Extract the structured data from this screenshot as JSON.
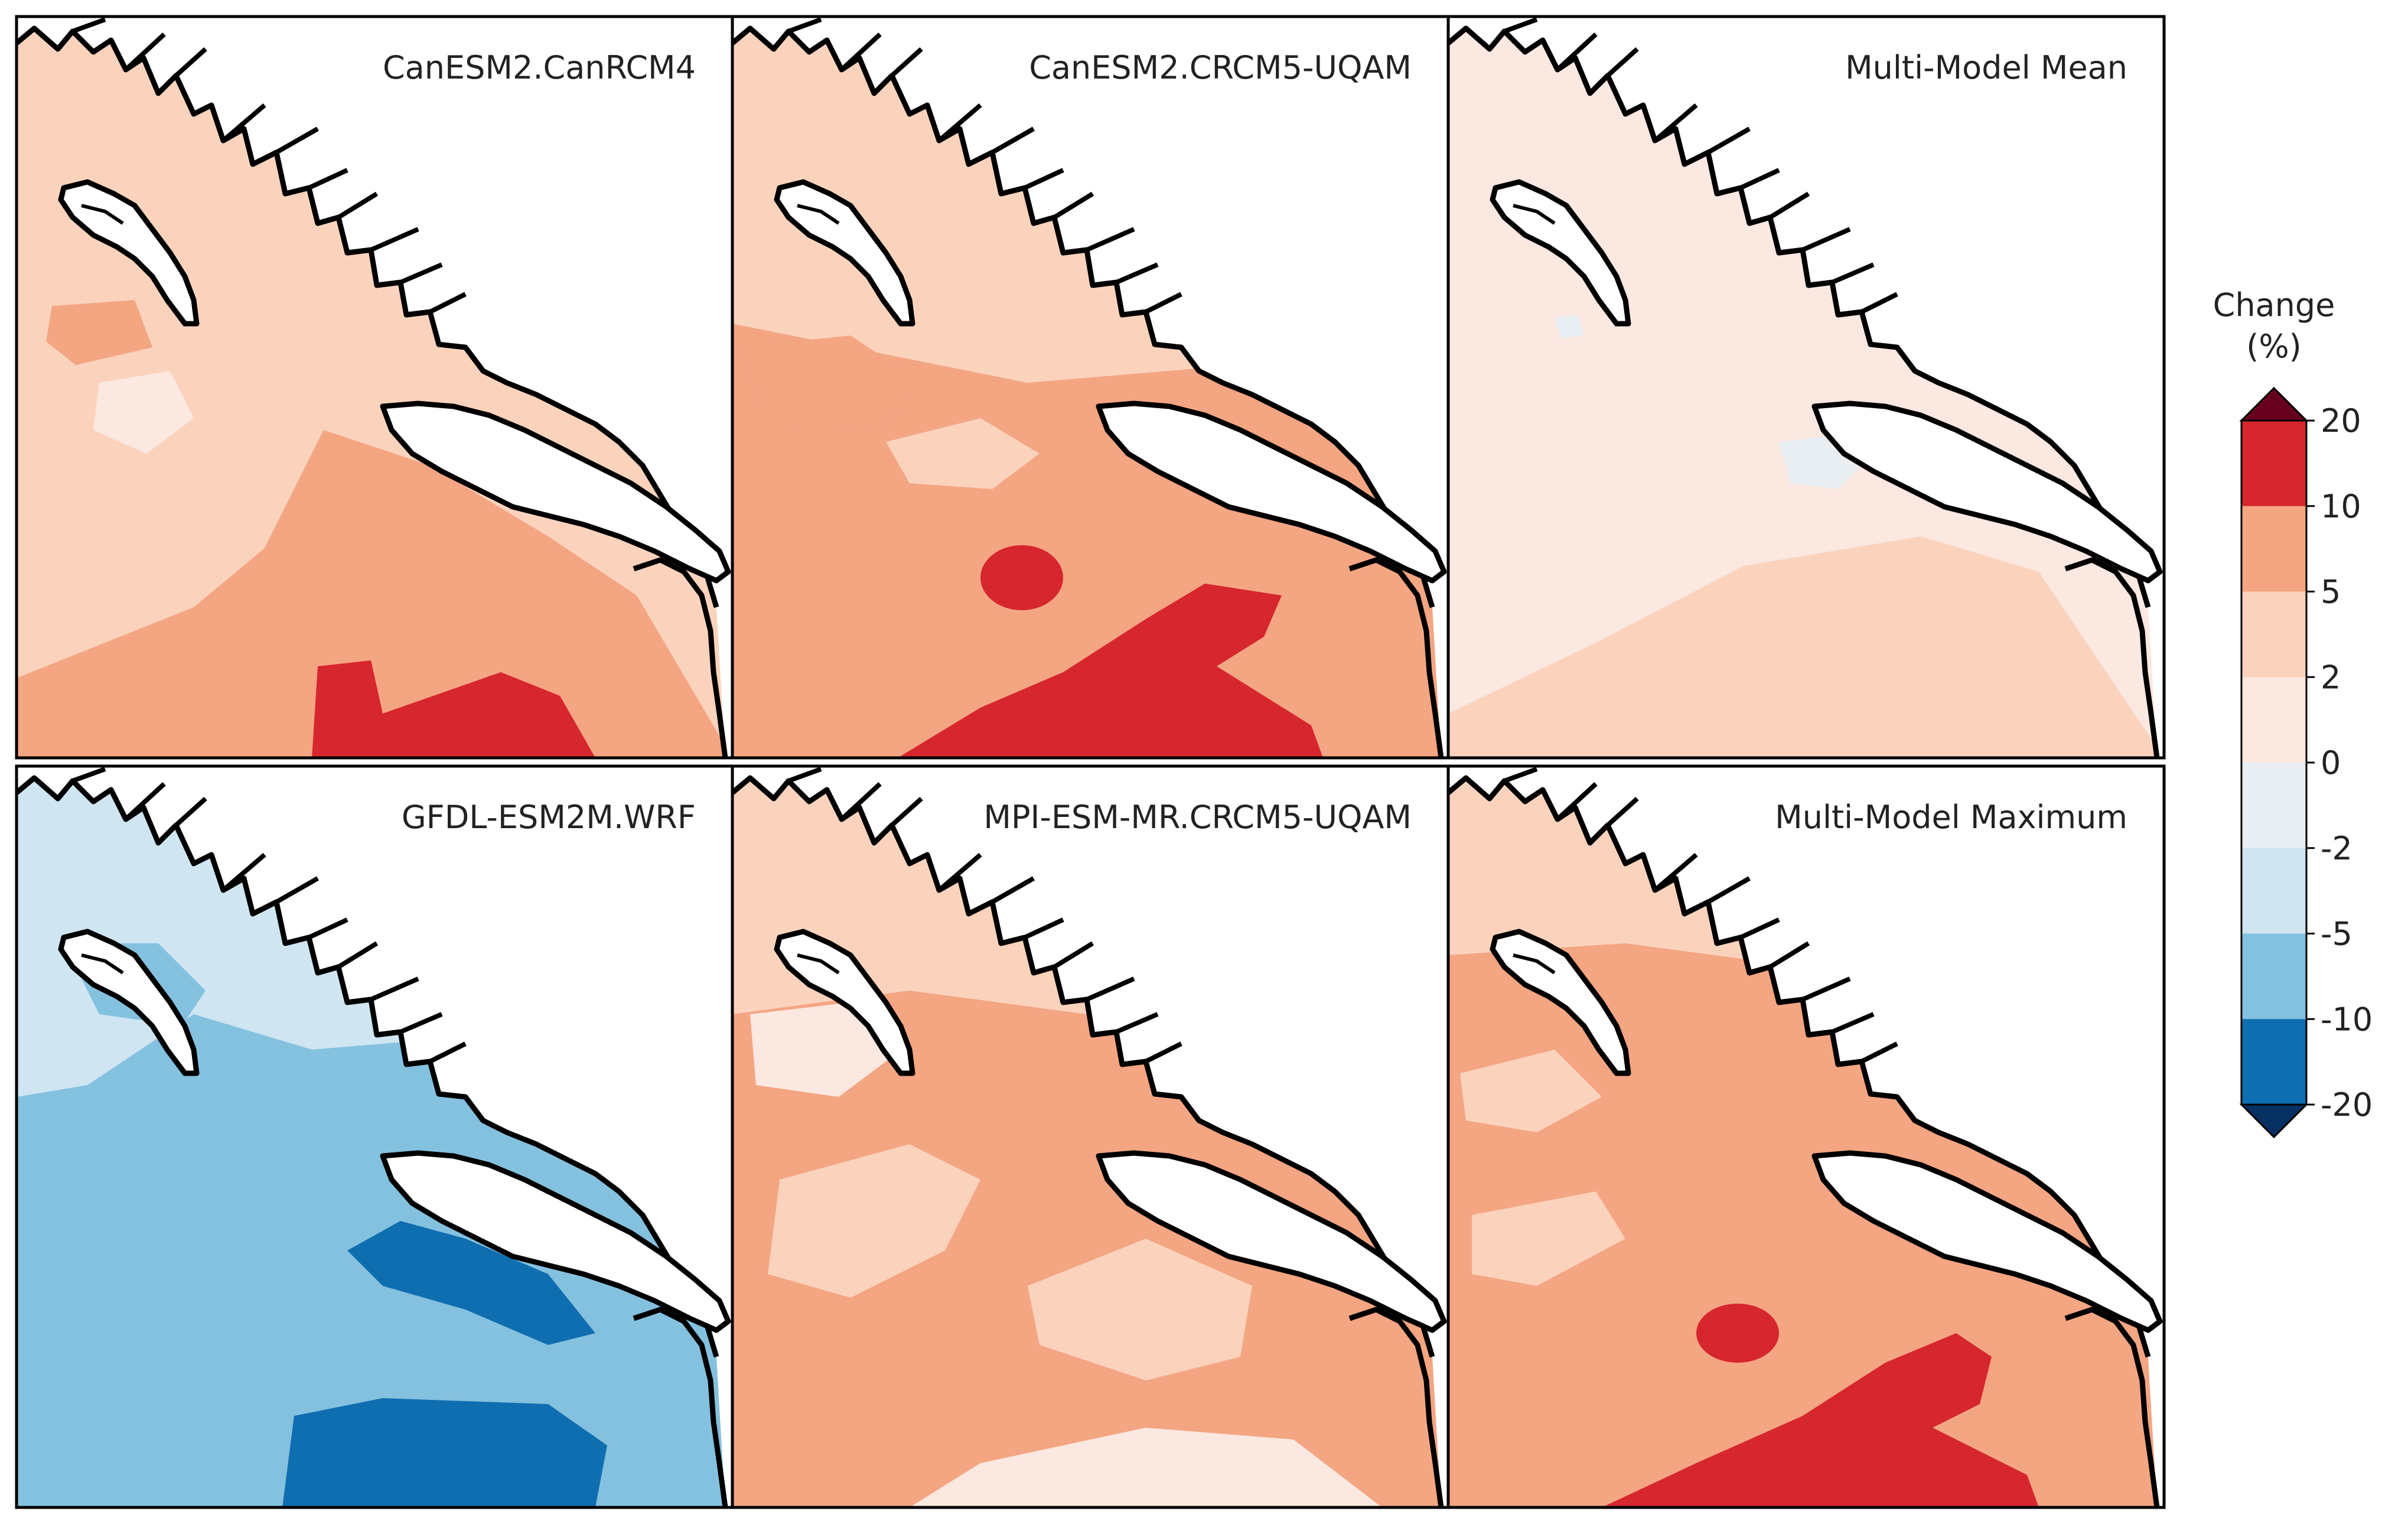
{
  "figure": {
    "panels": [
      {
        "id": "canesm2-canrcm4",
        "title": "CanESM2.CanRCM4",
        "dominant_bin": "2 to 5"
      },
      {
        "id": "canesm2-crcm5-uqam",
        "title": "CanESM2.CRCM5-UQAM",
        "dominant_bin": "5 to 10"
      },
      {
        "id": "multi-model-mean",
        "title": "Multi-Model Mean",
        "dominant_bin": "0 to 2"
      },
      {
        "id": "gfdl-esm2m-wrf",
        "title": "GFDL-ESM2M.WRF",
        "dominant_bin": "-10 to -5"
      },
      {
        "id": "mpi-esm-mr-crcm5-uqam",
        "title": "MPI-ESM-MR.CRCM5-UQAM",
        "dominant_bin": "5 to 10"
      },
      {
        "id": "multi-model-maximum",
        "title": "Multi-Model Maximum",
        "dominant_bin": "5 to 10"
      }
    ],
    "colorbar": {
      "title_line1": "Change",
      "title_line2": "(%)",
      "ticks": [
        "20",
        "10",
        "5",
        "2",
        "0",
        "-2",
        "-5",
        "-10",
        "-20"
      ],
      "bins": [
        {
          "range": "> 20",
          "color": "#67001f"
        },
        {
          "range": "10 to 20",
          "color": "#d6262e"
        },
        {
          "range": "5 to 10",
          "color": "#f4a582"
        },
        {
          "range": "2 to 5",
          "color": "#fbd3bd"
        },
        {
          "range": "0 to 2",
          "color": "#fbe8e0"
        },
        {
          "range": "-2 to 0",
          "color": "#e9eef3"
        },
        {
          "range": "-5 to -2",
          "color": "#cfe5f1"
        },
        {
          "range": "-10 to -5",
          "color": "#84c1df"
        },
        {
          "range": "-20 to -10",
          "color": "#0f6eb0"
        },
        {
          "range": "< -20",
          "color": "#053061"
        }
      ]
    },
    "colors": {
      "land": "#ffffff",
      "coast": "#000000"
    }
  }
}
